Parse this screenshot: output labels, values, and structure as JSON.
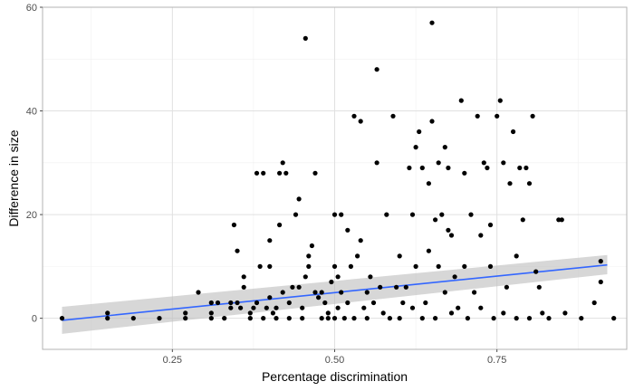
{
  "chart_data": {
    "type": "scatter",
    "title": "",
    "xlabel": "Percentage discrimination",
    "ylabel": "Difference in size",
    "xlim": [
      0.05,
      0.95
    ],
    "ylim": [
      -6.0,
      60.0
    ],
    "x_ticks": [
      0.25,
      0.5,
      0.75
    ],
    "x_tick_labels": [
      "0.25",
      "0.50",
      "0.75"
    ],
    "y_ticks": [
      0,
      20,
      40,
      60
    ],
    "y_tick_labels": [
      "0",
      "20",
      "40",
      "60"
    ],
    "grid": true,
    "legend": "none",
    "colors": {
      "points": "#000000",
      "trend_line": "#3366ff",
      "confidence_band": "#bdbdbd",
      "panel_border": "#b3b3b3",
      "grid_major": "#e0e0e0",
      "grid_minor": "#f0f0f0"
    },
    "trend": {
      "method": "linear",
      "x": [
        0.08,
        0.92
      ],
      "y": [
        -0.4,
        10.3
      ],
      "ci_lower": [
        -3.0,
        8.5
      ],
      "ci_upper": [
        2.2,
        12.2
      ]
    },
    "points": [
      [
        0.08,
        0
      ],
      [
        0.15,
        0
      ],
      [
        0.15,
        1
      ],
      [
        0.19,
        0
      ],
      [
        0.23,
        0
      ],
      [
        0.27,
        0
      ],
      [
        0.27,
        1
      ],
      [
        0.29,
        5
      ],
      [
        0.31,
        0
      ],
      [
        0.31,
        1
      ],
      [
        0.31,
        3
      ],
      [
        0.32,
        3
      ],
      [
        0.33,
        0
      ],
      [
        0.34,
        2
      ],
      [
        0.34,
        3
      ],
      [
        0.345,
        18
      ],
      [
        0.35,
        13
      ],
      [
        0.35,
        3
      ],
      [
        0.355,
        2
      ],
      [
        0.36,
        6
      ],
      [
        0.36,
        8
      ],
      [
        0.37,
        0
      ],
      [
        0.37,
        1
      ],
      [
        0.375,
        2
      ],
      [
        0.38,
        3
      ],
      [
        0.38,
        28
      ],
      [
        0.385,
        10
      ],
      [
        0.39,
        28
      ],
      [
        0.39,
        0
      ],
      [
        0.395,
        2
      ],
      [
        0.4,
        4
      ],
      [
        0.4,
        15
      ],
      [
        0.4,
        10
      ],
      [
        0.405,
        1
      ],
      [
        0.41,
        0
      ],
      [
        0.41,
        2
      ],
      [
        0.415,
        18
      ],
      [
        0.415,
        28
      ],
      [
        0.42,
        30
      ],
      [
        0.42,
        5
      ],
      [
        0.425,
        28
      ],
      [
        0.43,
        3
      ],
      [
        0.43,
        0
      ],
      [
        0.435,
        6
      ],
      [
        0.44,
        20
      ],
      [
        0.445,
        6
      ],
      [
        0.445,
        23
      ],
      [
        0.45,
        2
      ],
      [
        0.45,
        0
      ],
      [
        0.455,
        8
      ],
      [
        0.455,
        54
      ],
      [
        0.46,
        12
      ],
      [
        0.46,
        10
      ],
      [
        0.465,
        14
      ],
      [
        0.47,
        5
      ],
      [
        0.47,
        28
      ],
      [
        0.475,
        4
      ],
      [
        0.48,
        5
      ],
      [
        0.48,
        0
      ],
      [
        0.485,
        3
      ],
      [
        0.49,
        0
      ],
      [
        0.49,
        1
      ],
      [
        0.495,
        7
      ],
      [
        0.5,
        20
      ],
      [
        0.5,
        10
      ],
      [
        0.5,
        0
      ],
      [
        0.505,
        2
      ],
      [
        0.505,
        8
      ],
      [
        0.51,
        5
      ],
      [
        0.51,
        20
      ],
      [
        0.515,
        0
      ],
      [
        0.52,
        17
      ],
      [
        0.52,
        3
      ],
      [
        0.525,
        10
      ],
      [
        0.53,
        39
      ],
      [
        0.53,
        0
      ],
      [
        0.535,
        12
      ],
      [
        0.54,
        15
      ],
      [
        0.54,
        38
      ],
      [
        0.545,
        2
      ],
      [
        0.55,
        0
      ],
      [
        0.55,
        5
      ],
      [
        0.555,
        8
      ],
      [
        0.56,
        3
      ],
      [
        0.565,
        48
      ],
      [
        0.565,
        30
      ],
      [
        0.57,
        6
      ],
      [
        0.575,
        1
      ],
      [
        0.58,
        20
      ],
      [
        0.585,
        0
      ],
      [
        0.59,
        39
      ],
      [
        0.595,
        6
      ],
      [
        0.6,
        12
      ],
      [
        0.6,
        0
      ],
      [
        0.605,
        3
      ],
      [
        0.61,
        6
      ],
      [
        0.615,
        29
      ],
      [
        0.62,
        20
      ],
      [
        0.62,
        2
      ],
      [
        0.625,
        33
      ],
      [
        0.625,
        10
      ],
      [
        0.63,
        36
      ],
      [
        0.635,
        29
      ],
      [
        0.635,
        0
      ],
      [
        0.64,
        3
      ],
      [
        0.645,
        26
      ],
      [
        0.645,
        13
      ],
      [
        0.65,
        57
      ],
      [
        0.65,
        38
      ],
      [
        0.655,
        19
      ],
      [
        0.655,
        0
      ],
      [
        0.66,
        30
      ],
      [
        0.66,
        10
      ],
      [
        0.665,
        20
      ],
      [
        0.67,
        5
      ],
      [
        0.67,
        33
      ],
      [
        0.675,
        29
      ],
      [
        0.675,
        17
      ],
      [
        0.68,
        16
      ],
      [
        0.68,
        1
      ],
      [
        0.685,
        8
      ],
      [
        0.69,
        2
      ],
      [
        0.695,
        42
      ],
      [
        0.7,
        28
      ],
      [
        0.7,
        10
      ],
      [
        0.705,
        0
      ],
      [
        0.71,
        20
      ],
      [
        0.715,
        5
      ],
      [
        0.72,
        39
      ],
      [
        0.725,
        16
      ],
      [
        0.725,
        2
      ],
      [
        0.73,
        30
      ],
      [
        0.735,
        29
      ],
      [
        0.74,
        18
      ],
      [
        0.74,
        10
      ],
      [
        0.745,
        0
      ],
      [
        0.75,
        39
      ],
      [
        0.755,
        42
      ],
      [
        0.76,
        30
      ],
      [
        0.76,
        1
      ],
      [
        0.765,
        6
      ],
      [
        0.77,
        26
      ],
      [
        0.775,
        36
      ],
      [
        0.78,
        12
      ],
      [
        0.78,
        0
      ],
      [
        0.785,
        29
      ],
      [
        0.79,
        19
      ],
      [
        0.795,
        29
      ],
      [
        0.8,
        26
      ],
      [
        0.8,
        0
      ],
      [
        0.805,
        39
      ],
      [
        0.81,
        9
      ],
      [
        0.815,
        6
      ],
      [
        0.82,
        1
      ],
      [
        0.83,
        0
      ],
      [
        0.845,
        19
      ],
      [
        0.85,
        19
      ],
      [
        0.855,
        1
      ],
      [
        0.88,
        0
      ],
      [
        0.9,
        3
      ],
      [
        0.91,
        11
      ],
      [
        0.91,
        7
      ],
      [
        0.93,
        0
      ]
    ]
  }
}
